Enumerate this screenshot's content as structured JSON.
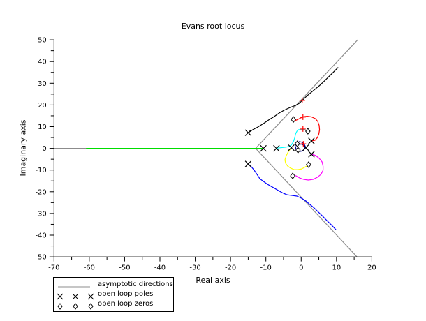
{
  "figure": {
    "title": "Evans root locus",
    "xlabel": "Real axis",
    "ylabel": "Imaginary axis"
  },
  "legend": {
    "items": [
      {
        "marker": "gray-line",
        "label": "asymptotic directions"
      },
      {
        "marker": "cross",
        "label": "open loop poles"
      },
      {
        "marker": "diamond",
        "label": "open loop zeros"
      }
    ]
  },
  "chart_data": {
    "type": "line",
    "title": "Evans root locus",
    "xlabel": "Real axis",
    "ylabel": "Imaginary axis",
    "xlim": [
      -70,
      20
    ],
    "ylim": [
      -50,
      50
    ],
    "xticks": [
      -70,
      -60,
      -50,
      -40,
      -30,
      -20,
      -10,
      0,
      10,
      20
    ],
    "yticks": [
      -50,
      -40,
      -30,
      -20,
      -10,
      0,
      10,
      20,
      30,
      40,
      50
    ],
    "minor_tick_step": 5,
    "grid": false,
    "legend_position": "bottom-left-outside",
    "colors": {
      "axis": "#000000",
      "asymptote": "#8c8c8c",
      "pole_marker": "#000000",
      "zero_marker": "#000000",
      "critical_marker": "#ff0000"
    },
    "asymptotes": {
      "centroid": [
        -12.9,
        0
      ],
      "ray_endpoints": [
        [
          16.0,
          50
        ],
        [
          15.8,
          -50
        ],
        [
          -70,
          0
        ]
      ]
    },
    "open_loop_poles": [
      [
        -15,
        7.2
      ],
      [
        -15,
        -7.2
      ],
      [
        -10.7,
        0
      ],
      [
        -7,
        0
      ],
      [
        -2.8,
        0.3
      ],
      [
        1.3,
        0.3
      ],
      [
        2.9,
        3.4
      ],
      [
        2.9,
        -2.7
      ]
    ],
    "open_loop_zeros": [
      [
        -2.2,
        13.3
      ],
      [
        1.9,
        7.9
      ],
      [
        -1.1,
        2.1
      ],
      [
        -0.9,
        -0.8
      ],
      [
        2.1,
        -7.5
      ],
      [
        -2.4,
        -12.7
      ]
    ],
    "critical_points": [
      [
        0.3,
        22.1
      ],
      [
        0.5,
        14.4
      ],
      [
        0.5,
        8.9
      ],
      [
        0.6,
        2.1
      ]
    ],
    "branches": [
      {
        "name": "branch-black",
        "color": "#000000",
        "points": [
          [
            -15,
            7.2
          ],
          [
            -13.7,
            8.6
          ],
          [
            -12.3,
            9.8
          ],
          [
            -10.7,
            11.4
          ],
          [
            -9.2,
            13.1
          ],
          [
            -7.6,
            14.7
          ],
          [
            -6.2,
            16.3
          ],
          [
            -4.8,
            17.6
          ],
          [
            -3.2,
            18.8
          ],
          [
            -1.6,
            19.8
          ],
          [
            -0.5,
            20.8
          ],
          [
            0.3,
            22.1
          ],
          [
            1.5,
            24.0
          ],
          [
            2.9,
            25.9
          ],
          [
            4.1,
            27.5
          ],
          [
            5.3,
            29.1
          ],
          [
            6.6,
            31.1
          ],
          [
            7.8,
            33.0
          ],
          [
            9.0,
            34.9
          ],
          [
            10.4,
            37.2
          ]
        ]
      },
      {
        "name": "branch-blue",
        "color": "#0000ff",
        "points": [
          [
            -15,
            -7.2
          ],
          [
            -14.1,
            -8.5
          ],
          [
            -13.3,
            -10.1
          ],
          [
            -12.5,
            -12.0
          ],
          [
            -11.7,
            -14.0
          ],
          [
            -10.7,
            -15.2
          ],
          [
            -9.6,
            -16.5
          ],
          [
            -8.2,
            -17.8
          ],
          [
            -6.8,
            -19.1
          ],
          [
            -5.4,
            -20.4
          ],
          [
            -4.0,
            -21.4
          ],
          [
            -2.6,
            -21.7
          ],
          [
            -1.2,
            -22.0
          ],
          [
            0.1,
            -23.0
          ],
          [
            1.3,
            -24.2
          ],
          [
            2.5,
            -25.9
          ],
          [
            3.7,
            -27.5
          ],
          [
            4.9,
            -29.4
          ],
          [
            6.1,
            -31.3
          ],
          [
            7.3,
            -33.3
          ],
          [
            8.5,
            -35.2
          ],
          [
            9.8,
            -37.4
          ]
        ]
      },
      {
        "name": "branch-green",
        "color": "#00dd00",
        "points": [
          [
            -60.8,
            0
          ],
          [
            -10.7,
            0
          ]
        ]
      },
      {
        "name": "branch-cyan",
        "color": "#00ffff",
        "points": [
          [
            -7,
            0.1
          ],
          [
            -5.8,
            0.3
          ],
          [
            -4.6,
            0.5
          ],
          [
            -3.6,
            0.8
          ],
          [
            -2.8,
            1.5
          ],
          [
            -2.2,
            3.1
          ],
          [
            -1.8,
            5.0
          ],
          [
            -1.6,
            6.6
          ],
          [
            -1.2,
            7.9
          ],
          [
            -0.7,
            8.6
          ],
          [
            0.1,
            8.6
          ],
          [
            0.9,
            8.6
          ],
          [
            1.5,
            8.2
          ],
          [
            1.9,
            7.9
          ]
        ]
      },
      {
        "name": "branch-red",
        "color": "#ff0000",
        "points": [
          [
            2.9,
            3.4
          ],
          [
            3.9,
            3.7
          ],
          [
            4.6,
            5.0
          ],
          [
            5.0,
            6.6
          ],
          [
            5.2,
            8.6
          ],
          [
            5.1,
            10.5
          ],
          [
            4.7,
            12.4
          ],
          [
            4.0,
            13.7
          ],
          [
            2.9,
            14.5
          ],
          [
            1.7,
            14.8
          ],
          [
            0.7,
            14.6
          ],
          [
            -0.3,
            13.9
          ],
          [
            -1.1,
            13.2
          ],
          [
            -1.9,
            12.7
          ]
        ]
      },
      {
        "name": "branch-yellow",
        "color": "#ffff00",
        "points": [
          [
            -2.8,
            0.2
          ],
          [
            -3.6,
            -1.4
          ],
          [
            -4.2,
            -3.3
          ],
          [
            -4.6,
            -5.3
          ],
          [
            -4.4,
            -6.9
          ],
          [
            -3.8,
            -8.2
          ],
          [
            -3.0,
            -9.1
          ],
          [
            -2.0,
            -9.8
          ],
          [
            -0.9,
            -9.8
          ],
          [
            0.1,
            -9.5
          ],
          [
            0.9,
            -8.8
          ],
          [
            1.5,
            -8.2
          ],
          [
            2.0,
            -7.6
          ]
        ]
      },
      {
        "name": "branch-magenta",
        "color": "#ff00ff",
        "points": [
          [
            2.9,
            -2.7
          ],
          [
            4.1,
            -3.3
          ],
          [
            5.1,
            -4.6
          ],
          [
            5.9,
            -6.2
          ],
          [
            6.2,
            -8.2
          ],
          [
            6.2,
            -10.1
          ],
          [
            5.6,
            -12.0
          ],
          [
            4.6,
            -13.3
          ],
          [
            3.4,
            -14.3
          ],
          [
            2.0,
            -14.6
          ],
          [
            0.7,
            -14.3
          ],
          [
            -0.5,
            -13.6
          ],
          [
            -1.4,
            -12.7
          ],
          [
            -2.3,
            -12.4
          ]
        ]
      },
      {
        "name": "branch-navy",
        "color": "#000099",
        "points": [
          [
            1.3,
            0.5
          ],
          [
            0.9,
            1.8
          ],
          [
            0.3,
            2.8
          ],
          [
            -0.5,
            3.1
          ],
          [
            -1.3,
            2.4
          ],
          [
            -1.7,
            1.2
          ],
          [
            -1.5,
            -0.1
          ],
          [
            -0.9,
            -1.1
          ],
          [
            -0.1,
            -1.4
          ],
          [
            0.7,
            -0.8
          ],
          [
            1.1,
            0.2
          ],
          [
            0.9,
            1.2
          ],
          [
            0.3,
            1.9
          ],
          [
            -0.4,
            1.9
          ]
        ]
      }
    ]
  }
}
